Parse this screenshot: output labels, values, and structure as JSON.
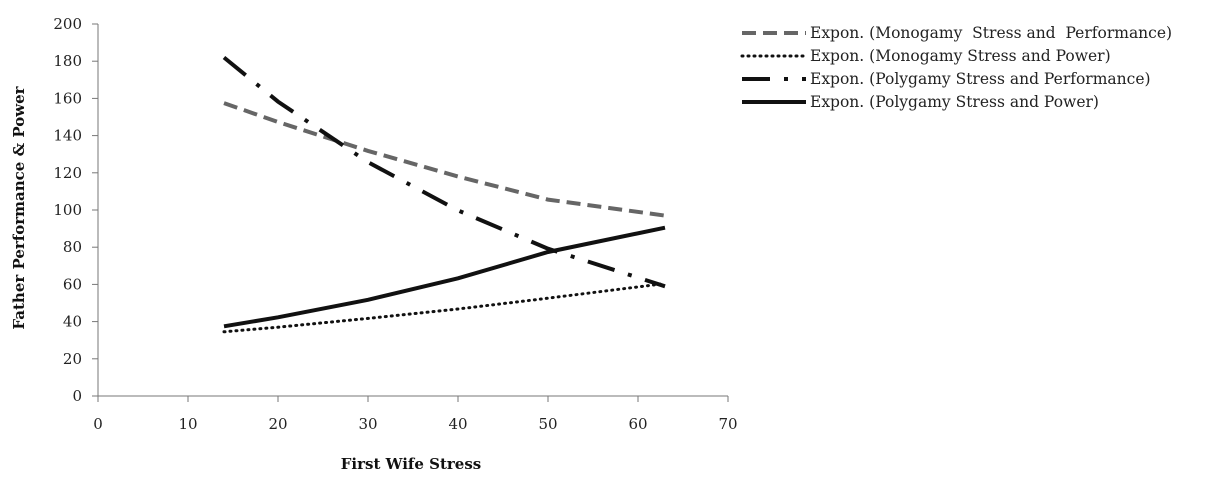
{
  "chart_data": {
    "type": "line",
    "title": "",
    "xlabel": "First Wife Stress",
    "ylabel": "Father Performance & Power",
    "xlim": [
      0,
      70
    ],
    "ylim": [
      0,
      200
    ],
    "xticks": [
      0,
      10,
      20,
      30,
      40,
      50,
      60,
      70
    ],
    "yticks": [
      0,
      20,
      40,
      60,
      80,
      100,
      120,
      140,
      160,
      180,
      200
    ],
    "grid": false,
    "legend_position": "top-right",
    "series": [
      {
        "name": "Expon. (Monogamy  Stress and  Performance)",
        "style": "dashed",
        "color": "#666666",
        "x": [
          14,
          20,
          30,
          40,
          50,
          63
        ],
        "y": [
          157.5,
          147.3,
          131.8,
          118.0,
          105.6,
          97
        ]
      },
      {
        "name": "Expon. (Monogamy Stress and Power)",
        "style": "dotted",
        "color": "#111111",
        "x": [
          14,
          20,
          30,
          40,
          50,
          63
        ],
        "y": [
          34.5,
          37.0,
          41.7,
          46.8,
          52.6,
          60.5
        ]
      },
      {
        "name": "Expon. (Polygamy Stress and Performance)",
        "style": "dashdot",
        "color": "#111111",
        "x": [
          14,
          20,
          30,
          40,
          50,
          63
        ],
        "y": [
          182,
          158.3,
          125.7,
          99.8,
          79.2,
          59
        ]
      },
      {
        "name": "Expon. (Polygamy Stress and Power)",
        "style": "solid",
        "color": "#111111",
        "x": [
          14,
          20,
          30,
          40,
          50,
          63
        ],
        "y": [
          37.5,
          42.3,
          51.7,
          63.3,
          77.4,
          90.5
        ]
      }
    ]
  }
}
